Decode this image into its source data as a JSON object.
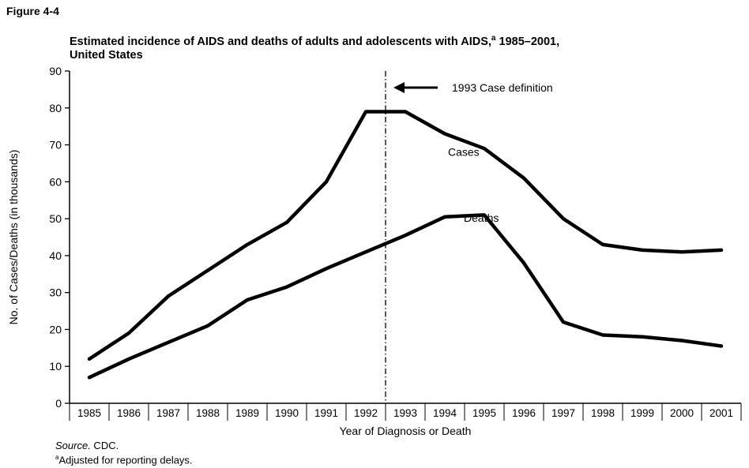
{
  "figure_label": "Figure 4-4",
  "title_main": "Estimated incidence of AIDS and deaths of adults and adolescents with AIDS,",
  "title_mark": "a",
  "title_years": " 1985–2001,",
  "title_line2": "United States",
  "source_label": "Source.",
  "source_value": " CDC.",
  "footnote_mark": "a",
  "footnote_text": "Adjusted for reporting delays.",
  "chart_data": {
    "type": "line",
    "x": [
      "1985",
      "1986",
      "1987",
      "1988",
      "1989",
      "1990",
      "1991",
      "1992",
      "1993",
      "1994",
      "1995",
      "1996",
      "1997",
      "1998",
      "1999",
      "2000",
      "2001"
    ],
    "series": [
      {
        "name": "Cases",
        "values": [
          12,
          19,
          29,
          36,
          43,
          49,
          60,
          79,
          79,
          73,
          69,
          61,
          50,
          43,
          41.5,
          41,
          41.5
        ]
      },
      {
        "name": "Deaths",
        "values": [
          7,
          12,
          16.5,
          21,
          28,
          31.5,
          36.5,
          41,
          45.5,
          50.5,
          51,
          38,
          22,
          18.5,
          18,
          17,
          15.5
        ]
      }
    ],
    "xlabel": "Year of Diagnosis or Death",
    "ylabel": "No. of Cases/Deaths (in thousands)",
    "ylim": [
      0,
      90
    ],
    "yticks": [
      0,
      10,
      20,
      30,
      40,
      50,
      60,
      70,
      80,
      90
    ],
    "annotation": {
      "text": "1993 Case definition",
      "x_between": [
        "1992",
        "1993"
      ]
    },
    "grid": false,
    "legend": "inline labels"
  }
}
